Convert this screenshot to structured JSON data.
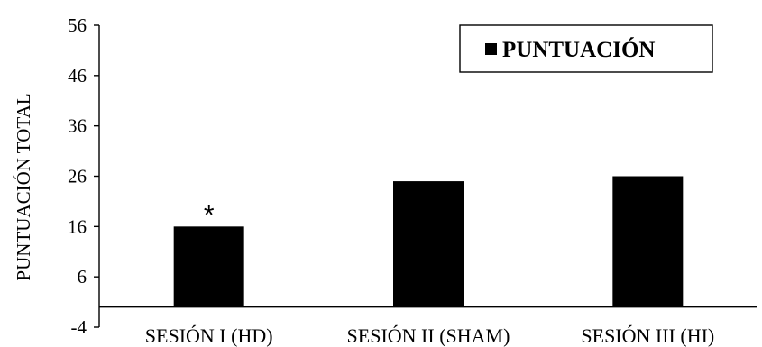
{
  "chart_data": {
    "type": "bar",
    "categories": [
      "SESIÓN I (HD)",
      "SESIÓN II (SHAM)",
      "SESIÓN III (HI)"
    ],
    "series": [
      {
        "name": "PUNTUACIÓN",
        "values": [
          16,
          25,
          26
        ],
        "color": "#000000"
      }
    ],
    "ylabel": "PUNTUACIÓN TOTAL",
    "xlabel": "",
    "ylim": [
      -4,
      56
    ],
    "yticks": [
      -4,
      6,
      16,
      26,
      36,
      46,
      56
    ],
    "baseline": 0,
    "grid": false,
    "legend": {
      "position": "top-right",
      "label": "PUNTUACIÓN"
    },
    "annotations": [
      {
        "category_index": 0,
        "text": "*"
      }
    ]
  }
}
